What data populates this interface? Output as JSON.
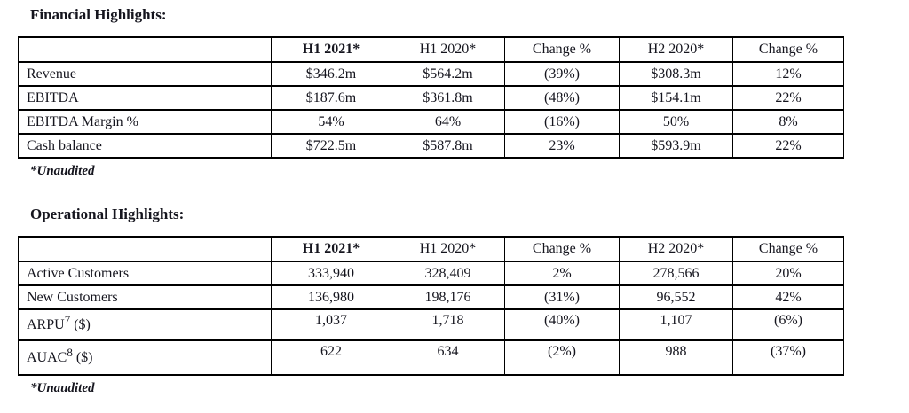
{
  "colors": {
    "background": "#ffffff",
    "text": "#15151e",
    "table_border": "#000000"
  },
  "sections": [
    {
      "title": "Financial Highlights:",
      "footnote": "*Unaudited",
      "table": {
        "columns": [
          "",
          "H1 2021*",
          "H1 2020*",
          "Change %",
          "H2 2020*",
          "Change %"
        ],
        "rows": [
          {
            "label": "Revenue",
            "values": [
              "$346.2m",
              "$564.2m",
              "(39%)",
              "$308.3m",
              "12%"
            ]
          },
          {
            "label": "EBITDA",
            "values": [
              "$187.6m",
              "$361.8m",
              "(48%)",
              "$154.1m",
              "22%"
            ]
          },
          {
            "label": "EBITDA Margin %",
            "values": [
              "54%",
              "64%",
              "(16%)",
              "50%",
              "8%"
            ]
          },
          {
            "label": "Cash balance",
            "values": [
              "$722.5m",
              "$587.8m",
              "23%",
              "$593.9m",
              "22%"
            ]
          }
        ]
      }
    },
    {
      "title": "Operational Highlights:",
      "footnote": "*Unaudited",
      "table": {
        "columns": [
          "",
          "H1 2021*",
          "H1 2020*",
          "Change %",
          "H2 2020*",
          "Change %"
        ],
        "rows": [
          {
            "label": "Active Customers",
            "values": [
              "333,940",
              "328,409",
              "2%",
              "278,566",
              "20%"
            ]
          },
          {
            "label": "New Customers",
            "values": [
              "136,980",
              "198,176",
              "(31%)",
              "96,552",
              "42%"
            ]
          },
          {
            "label": "ARPU",
            "label_sup": "7",
            "label_suffix": " ($)",
            "values": [
              "1,037",
              "1,718",
              "(40%)",
              "1,107",
              "(6%)"
            ]
          },
          {
            "label": "AUAC",
            "label_sup": "8",
            "label_suffix": " ($)",
            "values": [
              "622",
              "634",
              "(2%)",
              "988",
              "(37%)"
            ]
          }
        ]
      }
    }
  ]
}
